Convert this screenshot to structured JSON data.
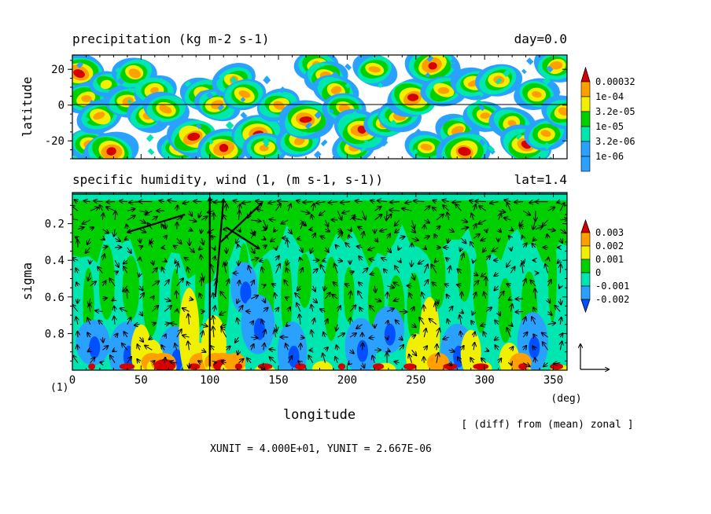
{
  "chart_data": [
    {
      "type": "heatmap",
      "title": "precipitation (kg m-2 s-1)",
      "title_right": "day=0.0",
      "ylabel": "latitude",
      "xlim": [
        0,
        360
      ],
      "ylim": [
        -30,
        28
      ],
      "yticks": [
        "20",
        "0",
        "-20"
      ],
      "ytick_values": [
        20,
        0,
        -20
      ],
      "legend": {
        "labels": [
          "0.00032",
          "1e-04",
          "3.2e-05",
          "1e-05",
          "3.2e-06",
          "1e-06"
        ],
        "colors": [
          "#d70000",
          "#ffa000",
          "#f0f000",
          "#00d000",
          "#00e6b0",
          "#2aa0ff"
        ]
      },
      "blobs": [
        [
          5,
          18,
          2
        ],
        [
          10,
          4,
          1
        ],
        [
          12,
          -22,
          1
        ],
        [
          20,
          -6,
          1
        ],
        [
          25,
          12,
          0
        ],
        [
          28,
          -26,
          2
        ],
        [
          40,
          2,
          1
        ],
        [
          45,
          18,
          1
        ],
        [
          55,
          -6,
          1
        ],
        [
          60,
          8,
          1
        ],
        [
          68,
          -2,
          1
        ],
        [
          78,
          -24,
          1
        ],
        [
          88,
          -18,
          2
        ],
        [
          95,
          6,
          1
        ],
        [
          105,
          0,
          1
        ],
        [
          110,
          -24,
          2
        ],
        [
          118,
          14,
          1
        ],
        [
          125,
          6,
          1
        ],
        [
          135,
          -16,
          2
        ],
        [
          140,
          -24,
          1
        ],
        [
          150,
          0,
          1
        ],
        [
          165,
          -20,
          1
        ],
        [
          170,
          -8,
          2
        ],
        [
          178,
          22,
          1
        ],
        [
          185,
          16,
          1
        ],
        [
          192,
          8,
          1
        ],
        [
          198,
          -2,
          1
        ],
        [
          205,
          -24,
          1
        ],
        [
          210,
          -14,
          2
        ],
        [
          220,
          20,
          1
        ],
        [
          228,
          -10,
          1
        ],
        [
          238,
          -6,
          1
        ],
        [
          248,
          4,
          2
        ],
        [
          258,
          -24,
          1
        ],
        [
          262,
          22,
          2
        ],
        [
          270,
          8,
          1
        ],
        [
          280,
          -14,
          1
        ],
        [
          285,
          -26,
          2
        ],
        [
          292,
          12,
          1
        ],
        [
          300,
          -6,
          1
        ],
        [
          310,
          14,
          1
        ],
        [
          320,
          -10,
          1
        ],
        [
          330,
          -22,
          2
        ],
        [
          338,
          6,
          1
        ],
        [
          345,
          -16,
          1
        ],
        [
          352,
          22,
          1
        ],
        [
          358,
          -4,
          1
        ]
      ]
    },
    {
      "type": "heatmap",
      "title": "specific humidity, wind (1, (m s-1, s-1))",
      "title_right": "lat=1.4",
      "xlabel": "longitude",
      "ylabel": "sigma",
      "xlim": [
        0,
        360
      ],
      "ylim": [
        0.03,
        1.0
      ],
      "xticks": [
        "0",
        "50",
        "100",
        "150",
        "200",
        "250",
        "300",
        "350"
      ],
      "xtick_values": [
        0,
        50,
        100,
        150,
        200,
        250,
        300,
        350
      ],
      "x_unit_label": "(deg)",
      "yticks": [
        "0.2",
        "0.4",
        "0.6",
        "0.8"
      ],
      "ytick_values": [
        0.2,
        0.4,
        0.6,
        0.8
      ],
      "legend": {
        "labels": [
          "0.003",
          "0.002",
          "0.001",
          "0",
          "-0.001",
          "-0.002"
        ],
        "colors": [
          "#d70000",
          "#ffa000",
          "#f0f000",
          "#00d000",
          "#00e6b0",
          "#2aa0ff",
          "#0050ff"
        ]
      },
      "warm_plumes": [
        [
          50,
          0.75,
          1
        ],
        [
          57,
          0.83,
          2
        ],
        [
          65,
          0.93,
          3
        ],
        [
          85,
          0.55,
          1
        ],
        [
          92,
          0.85,
          2
        ],
        [
          103,
          0.7,
          2
        ],
        [
          108,
          0.96,
          3
        ],
        [
          117,
          0.95,
          2
        ],
        [
          140,
          0.97,
          1
        ],
        [
          182,
          0.95,
          1
        ],
        [
          228,
          0.96,
          1
        ],
        [
          250,
          0.8,
          1
        ],
        [
          260,
          0.6,
          1
        ],
        [
          265,
          0.92,
          2
        ],
        [
          290,
          0.78,
          1
        ],
        [
          298,
          0.95,
          1
        ],
        [
          318,
          0.85,
          1
        ],
        [
          325,
          0.97,
          2
        ],
        [
          355,
          0.97,
          1
        ]
      ],
      "dry_patches": [
        [
          15,
          0.85
        ],
        [
          40,
          0.9
        ],
        [
          75,
          0.92
        ],
        [
          125,
          0.55
        ],
        [
          135,
          0.75
        ],
        [
          160,
          0.9
        ],
        [
          210,
          0.87
        ],
        [
          230,
          0.78
        ],
        [
          280,
          0.9
        ],
        [
          335,
          0.85
        ]
      ],
      "strong_vectors": [
        [
          100,
          0.98,
          0,
          -0.95
        ],
        [
          104,
          0.6,
          2,
          -0.55
        ],
        [
          108,
          0.3,
          10,
          -0.22
        ],
        [
          112,
          0.22,
          8,
          0.12
        ],
        [
          82,
          0.15,
          -14,
          0.1
        ]
      ]
    }
  ],
  "footer_left": "(1)",
  "footer_note": "[ (diff) from (mean) zonal ]",
  "units_line": "XUNIT = 4.000E+01, YUNIT = 2.667E-06"
}
